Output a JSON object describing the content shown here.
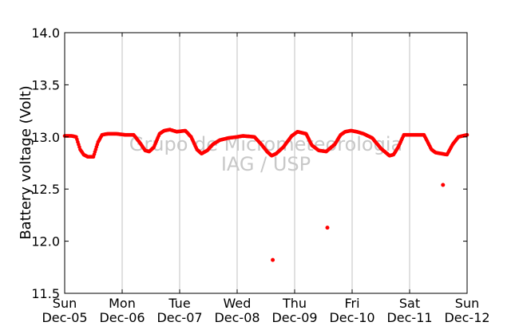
{
  "chart_data": {
    "type": "scatter",
    "ylabel": "Battery voltage (Volt)",
    "ylim": [
      11.5,
      14.0
    ],
    "yticks": [
      11.5,
      12.0,
      12.5,
      13.0,
      13.5,
      14.0
    ],
    "ytick_labels": [
      "11.5",
      "12.0",
      "12.5",
      "13.0",
      "13.5",
      "14.0"
    ],
    "x_unit": "days",
    "xlim": [
      0,
      7
    ],
    "xticks": [
      {
        "x": 0,
        "day": "Sun",
        "date": "Dec-05"
      },
      {
        "x": 1,
        "day": "Mon",
        "date": "Dec-06"
      },
      {
        "x": 2,
        "day": "Tue",
        "date": "Dec-07"
      },
      {
        "x": 3,
        "day": "Wed",
        "date": "Dec-08"
      },
      {
        "x": 4,
        "day": "Thu",
        "date": "Dec-09"
      },
      {
        "x": 5,
        "day": "Fri",
        "date": "Dec-10"
      },
      {
        "x": 6,
        "day": "Sat",
        "date": "Dec-11"
      },
      {
        "x": 7,
        "day": "Sun",
        "date": "Dec-12"
      }
    ],
    "grid": "vertical",
    "marker_color": "#ff0000",
    "series": [
      {
        "x": [
          0.0,
          0.12,
          0.2,
          0.27,
          0.33,
          0.4,
          0.5,
          0.58,
          0.65,
          0.75,
          0.9,
          1.05,
          1.2,
          1.3,
          1.4,
          1.47,
          1.55,
          1.65,
          1.73,
          1.83,
          1.95,
          2.1,
          2.2,
          2.3,
          2.38,
          2.48,
          2.58,
          2.7,
          2.85,
          3.0,
          3.1,
          3.3,
          3.42,
          3.52,
          3.6,
          3.68,
          3.8,
          3.95,
          4.05,
          4.2,
          4.3,
          4.42,
          4.55,
          4.7,
          4.8,
          4.88,
          4.98,
          5.08,
          5.2,
          5.35,
          5.5,
          5.65,
          5.72,
          5.8,
          5.9,
          5.98,
          6.1,
          6.25,
          6.38,
          6.45,
          6.55,
          6.65,
          6.75,
          6.85,
          7.0
        ],
        "y": [
          13.01,
          13.01,
          13.0,
          12.88,
          12.83,
          12.81,
          12.81,
          12.95,
          13.02,
          13.03,
          13.03,
          13.02,
          13.02,
          12.95,
          12.87,
          12.86,
          12.9,
          13.03,
          13.06,
          13.07,
          13.05,
          13.06,
          13.0,
          12.88,
          12.84,
          12.87,
          12.93,
          12.97,
          12.99,
          13.0,
          13.01,
          13.0,
          12.93,
          12.86,
          12.82,
          12.84,
          12.9,
          13.01,
          13.05,
          13.03,
          12.92,
          12.87,
          12.86,
          12.93,
          13.02,
          13.05,
          13.06,
          13.05,
          13.03,
          12.99,
          12.89,
          12.82,
          12.83,
          12.9,
          13.02,
          13.02,
          13.02,
          13.02,
          12.88,
          12.85,
          12.84,
          12.83,
          12.93,
          13.0,
          13.02
        ]
      }
    ],
    "outliers": {
      "x": [
        3.62,
        4.57,
        6.58
      ],
      "y": [
        11.82,
        12.13,
        12.54
      ]
    }
  },
  "watermark": {
    "line1": "Grupo de Micrometeorologia",
    "line2": "IAG / USP"
  }
}
